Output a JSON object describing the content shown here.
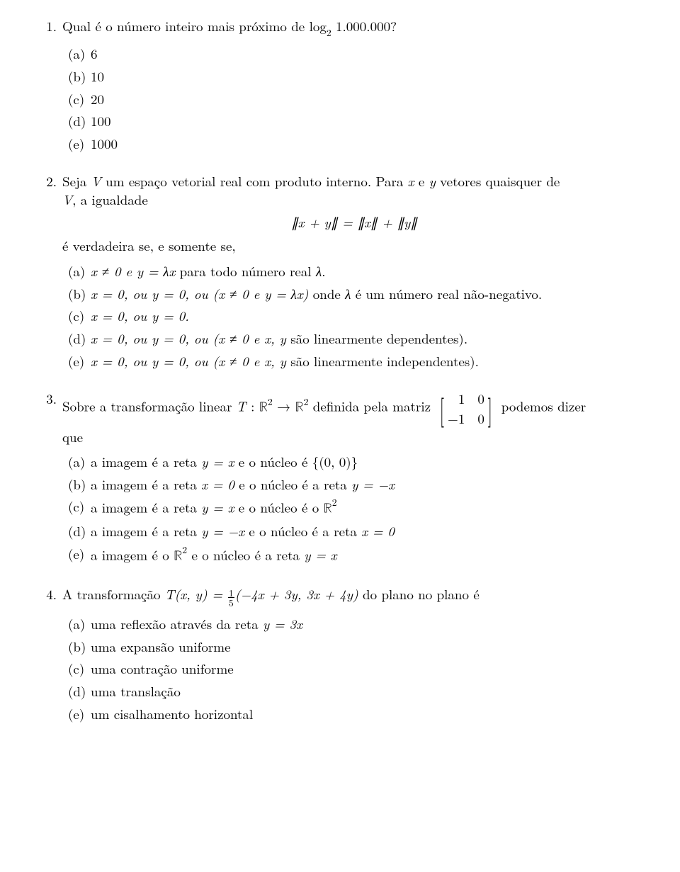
{
  "q1": {
    "num": "1.",
    "text_pre": "Qual é o número inteiro mais próximo de log",
    "text_sub": "2",
    "text_post": " 1.000.000?",
    "opts": {
      "a": {
        "label": "(a)",
        "text": "6"
      },
      "b": {
        "label": "(b)",
        "text": "10"
      },
      "c": {
        "label": "(c)",
        "text": "20"
      },
      "d": {
        "label": "(d)",
        "text": "100"
      },
      "e": {
        "label": "(e)",
        "text": "1000"
      }
    }
  },
  "q2": {
    "num": "2.",
    "line1_pre": "Seja ",
    "line1_V": "V",
    "line1_post": " um espaço vetorial real com produto interno. Para ",
    "line1_x": "x",
    "line1_mid1": " e ",
    "line1_y": "y",
    "line1_mid2": " vetores quaisquer de",
    "line2_V": "V",
    "line2_text": ", a igualdade",
    "eq": "∥x + y∥ = ∥x∥ + ∥y∥",
    "line3": "é verdadeira se, e somente se,",
    "opts": {
      "a": {
        "label": "(a)",
        "pre": "x ≠ 0 e y = λx",
        "post": " para todo número real ",
        "lam": "λ",
        "end": "."
      },
      "b": {
        "label": "(b)",
        "t1": "x = 0, ou y = 0, ou (x ≠ 0 e y = λx)",
        "t2": " onde ",
        "lam": "λ",
        "t3": " é um número real não-negativo."
      },
      "c": {
        "label": "(c)",
        "text": "x = 0, ou y = 0."
      },
      "d": {
        "label": "(d)",
        "t1": "x = 0, ou y = 0, ou (x ≠ 0 e x, y",
        "t2": " são linearmente dependentes)."
      },
      "e": {
        "label": "(e)",
        "t1": "x = 0, ou y = 0, ou (x ≠ 0 e x, y",
        "t2": " são linearmente independentes)."
      }
    }
  },
  "q3": {
    "num": "3.",
    "t1": "Sobre a transformação linear ",
    "T": "T ",
    "colon": ": ",
    "R": "ℝ",
    "sup2": "2",
    "arrow": " → ",
    "t2": " definida pela matriz ",
    "matrix": {
      "r1c1": "1",
      "r1c2": "0",
      "r2c1": "−1",
      "r2c2": "0"
    },
    "t3": " podemos dizer",
    "line2": "que",
    "opts": {
      "a": {
        "label": "(a)",
        "t1": "a imagem é a reta ",
        "m1": "y = x",
        "t2": " e o núcleo é ",
        "m2": "{(0, 0)}"
      },
      "b": {
        "label": "(b)",
        "t1": "a imagem é a reta ",
        "m1": "x = 0",
        "t2": " e o núcleo é a reta ",
        "m2": "y = −x"
      },
      "c": {
        "label": "(c)",
        "t1": "a imagem é a reta ",
        "m1": "y = x",
        "t2": " e o núcleo é o ",
        "R": "ℝ",
        "sup": "2"
      },
      "d": {
        "label": "(d)",
        "t1": "a imagem é a reta ",
        "m1": "y = −x",
        "t2": " e o núcleo é a reta ",
        "m2": "x = 0"
      },
      "e": {
        "label": "(e)",
        "t1": "a imagem é o ",
        "R": "ℝ",
        "sup": "2",
        "t2": " e o núcleo é a reta ",
        "m2": "y = x"
      }
    }
  },
  "q4": {
    "num": "4.",
    "t1": "A transformação ",
    "T": "T",
    "args": "(x, y) = ",
    "frac_num": "1",
    "frac_den": "5",
    "paren": "(−4x + 3y, 3x + 4y)",
    "t2": " do plano no plano é",
    "opts": {
      "a": {
        "label": "(a)",
        "t1": "uma reflexão através da reta ",
        "m1": "y = 3x"
      },
      "b": {
        "label": "(b)",
        "text": "uma expansão uniforme"
      },
      "c": {
        "label": "(c)",
        "text": "uma contração uniforme"
      },
      "d": {
        "label": "(d)",
        "text": "uma translação"
      },
      "e": {
        "label": "(e)",
        "text": "um cisalhamento horizontal"
      }
    }
  }
}
